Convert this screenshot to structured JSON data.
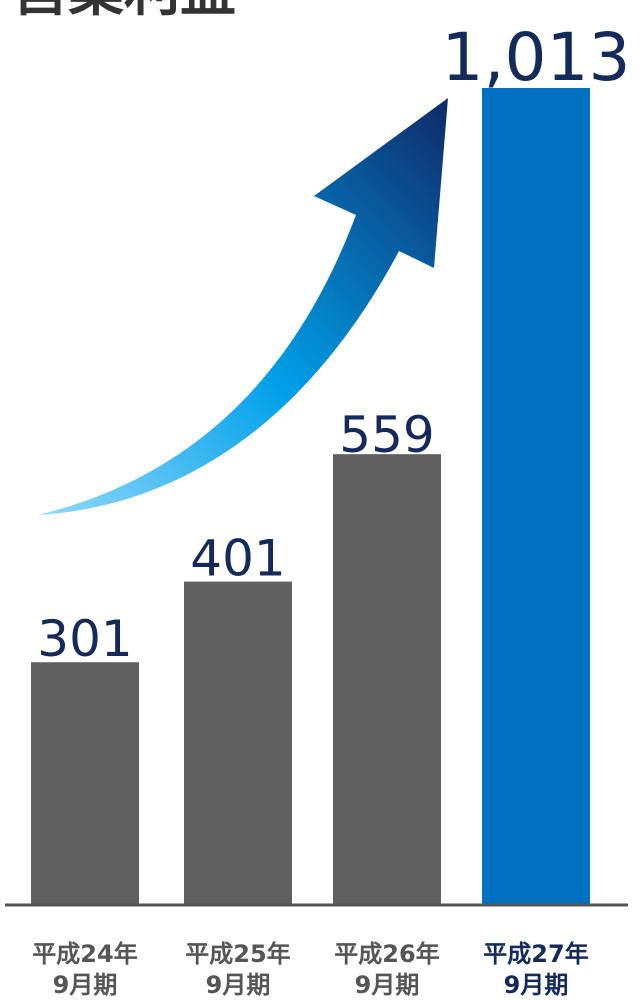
{
  "chart_data": {
    "type": "bar",
    "title": "営業利益",
    "categories": [
      [
        "平成24年",
        "9月期"
      ],
      [
        "平成25年",
        "9月期"
      ],
      [
        "平成26年",
        "9月期"
      ],
      [
        "平成27年",
        "9月期"
      ]
    ],
    "values": [
      301,
      401,
      559,
      1013
    ],
    "value_labels": [
      "301",
      "401",
      "559",
      "1,013"
    ],
    "highlight_index": 3,
    "xlabel": "",
    "ylabel": "",
    "ylim": [
      0,
      1013
    ],
    "grid": false,
    "legend": "none",
    "colors": {
      "bar": "#606060",
      "bar_highlight": "#0070c0",
      "value_text": "#142a5c",
      "title_text": "#333333",
      "category_text": "#555555",
      "category_highlight_text": "#142a5c",
      "baseline": "#555555",
      "arrow_start": "#8fd8fb",
      "arrow_mid": "#00a0e9",
      "arrow_end": "#0f2c6b"
    },
    "decoration": "upward-growth-arrow"
  }
}
